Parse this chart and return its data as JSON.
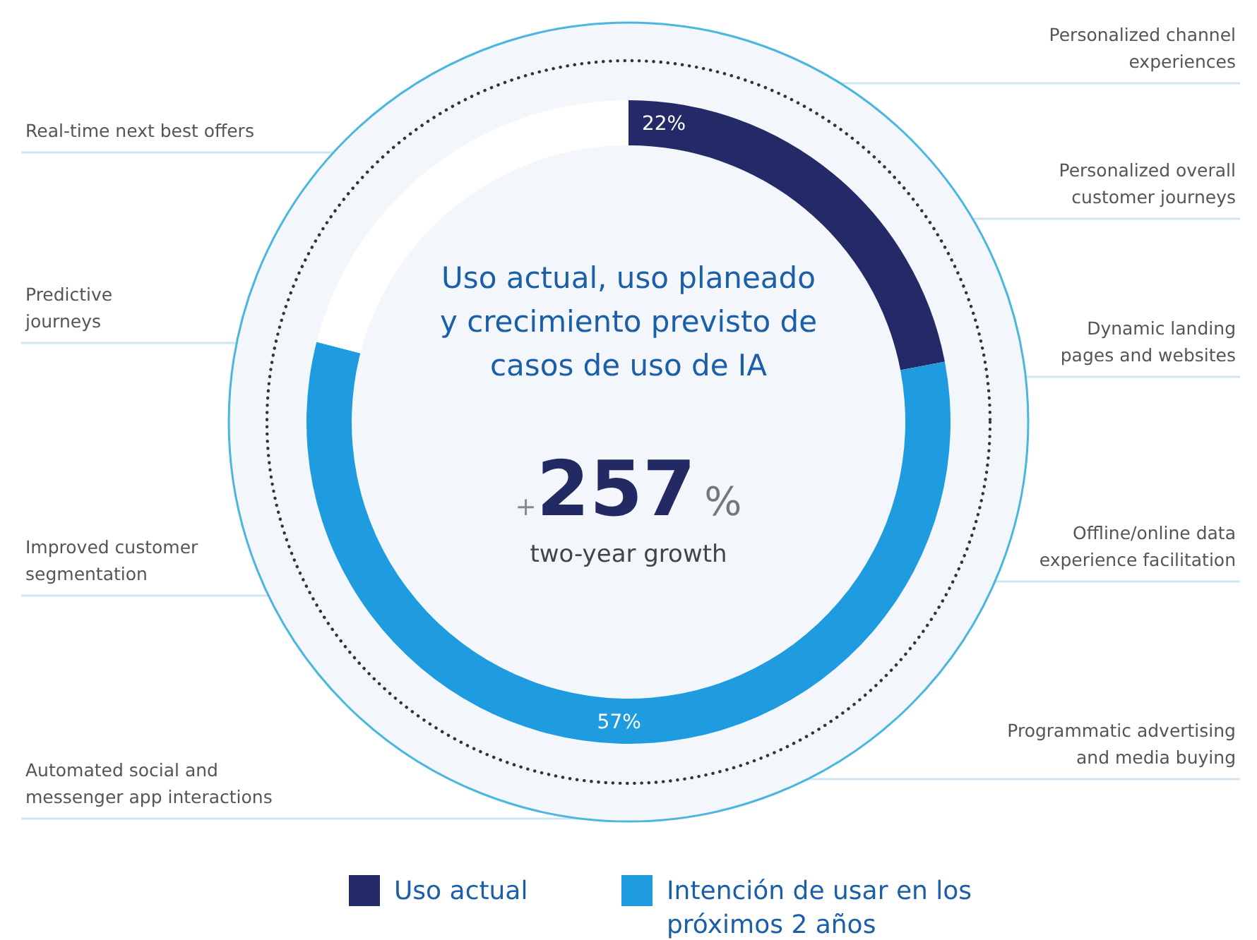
{
  "chart_data": {
    "type": "donut",
    "title": "Uso actual, uso planeado y crecimiento previsto de casos de uso de IA",
    "categories": [
      "Uso actual",
      "Intención de usar en los próximos 2 años",
      null
    ],
    "values": [
      22,
      57,
      21
    ],
    "colors": [
      "#242a68",
      "#1f9be0",
      "#ffffff"
    ],
    "value_labels": [
      "22%",
      "57%",
      null
    ],
    "legend": "bottom",
    "annotations": [
      "+257%",
      "two-year growth",
      "Real-time next best offers",
      "Predictive\njourneys",
      "Improved customer\nsegmentation",
      "Automated social and\nmessenger app interactions",
      "Personalized channel\nexperiences",
      "Personalized overall\ncustomer journeys",
      "Dynamic landing\npages and websites",
      "Offline/online data\nexperience facilitation",
      "Programmatic advertising\nand media buying"
    ]
  }
}
